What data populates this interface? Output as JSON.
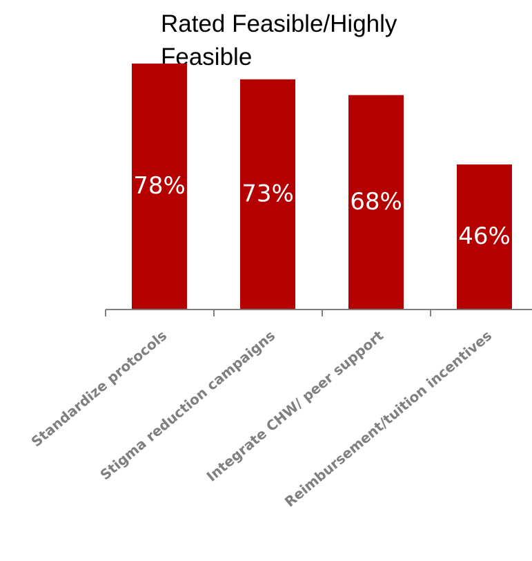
{
  "chart_data": {
    "type": "bar",
    "title": "Rated Feasible/Highly Feasible",
    "xlabel": "",
    "ylabel": "",
    "categories": [
      "Standardize protocols",
      "Stigma reduction campaigns",
      "Integrate CHW/ peer support",
      "Reimbursement/tuition incentives"
    ],
    "values": [
      78,
      73,
      68,
      46
    ],
    "data_labels": [
      "78%",
      "73%",
      "68%",
      "46%"
    ],
    "ylim": [
      0,
      80
    ],
    "grid": false,
    "legend": "none",
    "bar_color": "#b50000",
    "label_color": "#ffffff",
    "tick_label_color": "#7f7f7f"
  }
}
